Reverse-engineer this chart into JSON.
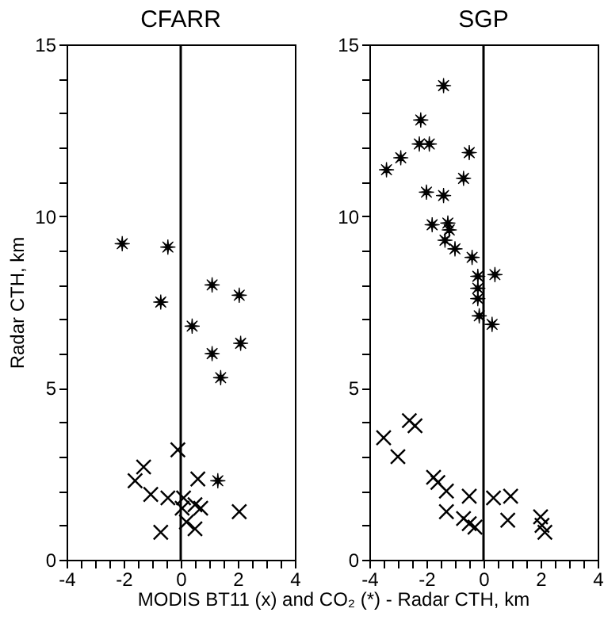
{
  "chart_data": [
    {
      "type": "scatter",
      "title": "CFARR",
      "xlabel": "MODIS BT11 (x) and CO₂ (*) - Radar CTH, km",
      "ylabel": "Radar CTH, km",
      "xlim": [
        -4,
        4
      ],
      "ylim": [
        0,
        15
      ],
      "xticks": [
        -4,
        {
          "value": -3.5,
          "label": null
        },
        {
          "value": -3,
          "label": null
        },
        {
          "value": -2.5,
          "label": null
        },
        -2,
        {
          "value": -1.5,
          "label": null
        },
        {
          "value": -1,
          "label": null
        },
        {
          "value": -0.5,
          "label": null
        },
        0,
        {
          "value": 0.5,
          "label": null
        },
        {
          "value": 1,
          "label": null
        },
        {
          "value": 1.5,
          "label": null
        },
        2,
        {
          "value": 2.5,
          "label": null
        },
        {
          "value": 3,
          "label": null
        },
        {
          "value": 3.5,
          "label": null
        },
        4
      ],
      "yticks": [
        0,
        {
          "value": 1,
          "label": null
        },
        {
          "value": 2,
          "label": null
        },
        {
          "value": 3,
          "label": null
        },
        {
          "value": 4,
          "label": null
        },
        5,
        {
          "value": 6,
          "label": null
        },
        {
          "value": 7,
          "label": null
        },
        {
          "value": 8,
          "label": null
        },
        {
          "value": 9,
          "label": null
        },
        10,
        {
          "value": 11,
          "label": null
        },
        {
          "value": 12,
          "label": null
        },
        {
          "value": 13,
          "label": null
        },
        {
          "value": 14,
          "label": null
        },
        15
      ],
      "grid": false,
      "ref_lines": [
        {
          "axis": "x",
          "value": 0,
          "color": "#000000"
        }
      ],
      "series": [
        {
          "color": "#000000",
          "marker": "cross",
          "x": [
            -0.1,
            -1.3,
            -1.6,
            -1.05,
            0.6,
            -0.45,
            0.1,
            0.5,
            0.7,
            0.05,
            2.05,
            -0.7,
            0.5,
            0.2
          ],
          "values": [
            3.2,
            2.7,
            2.3,
            1.9,
            2.35,
            1.8,
            1.8,
            1.6,
            1.5,
            1.5,
            1.4,
            0.8,
            0.9,
            1.1
          ]
        },
        {
          "color": "#000000",
          "marker": "star",
          "x": [
            -2.05,
            -0.45,
            -0.7,
            1.1,
            2.05,
            0.4,
            1.1,
            2.1,
            1.4,
            1.3
          ],
          "values": [
            9.2,
            9.1,
            7.5,
            8.0,
            7.7,
            6.8,
            6.0,
            6.3,
            5.3,
            2.3
          ]
        }
      ]
    },
    {
      "type": "scatter",
      "title": "SGP",
      "xlim": [
        -4,
        4
      ],
      "ylim": [
        0,
        15
      ],
      "xticks": [
        -4,
        {
          "value": -3.5,
          "label": null
        },
        {
          "value": -3,
          "label": null
        },
        {
          "value": -2.5,
          "label": null
        },
        -2,
        {
          "value": -1.5,
          "label": null
        },
        {
          "value": -1,
          "label": null
        },
        {
          "value": -0.5,
          "label": null
        },
        0,
        {
          "value": 0.5,
          "label": null
        },
        {
          "value": 1,
          "label": null
        },
        {
          "value": 1.5,
          "label": null
        },
        2,
        {
          "value": 2.5,
          "label": null
        },
        {
          "value": 3,
          "label": null
        },
        {
          "value": 3.5,
          "label": null
        },
        4
      ],
      "yticks": [
        0,
        {
          "value": 1,
          "label": null
        },
        {
          "value": 2,
          "label": null
        },
        {
          "value": 3,
          "label": null
        },
        {
          "value": 4,
          "label": null
        },
        5,
        {
          "value": 6,
          "label": null
        },
        {
          "value": 7,
          "label": null
        },
        {
          "value": 8,
          "label": null
        },
        {
          "value": 9,
          "label": null
        },
        10,
        {
          "value": 11,
          "label": null
        },
        {
          "value": 12,
          "label": null
        },
        {
          "value": 13,
          "label": null
        },
        {
          "value": 14,
          "label": null
        },
        15
      ],
      "grid": false,
      "ref_lines": [
        {
          "axis": "x",
          "value": 0,
          "color": "#000000"
        }
      ],
      "series": [
        {
          "color": "#000000",
          "marker": "cross",
          "x": [
            -3.5,
            -3.0,
            -2.6,
            -2.4,
            -1.75,
            -1.6,
            -1.3,
            -1.3,
            -0.5,
            -0.7,
            -0.5,
            -0.3,
            0.35,
            0.95,
            0.85,
            2.0,
            2.05,
            2.15
          ],
          "values": [
            3.55,
            3.0,
            4.05,
            3.9,
            2.4,
            2.25,
            2.0,
            1.4,
            1.85,
            1.2,
            1.05,
            0.95,
            1.8,
            1.85,
            1.15,
            1.25,
            1.0,
            0.8
          ]
        },
        {
          "color": "#000000",
          "marker": "star",
          "x": [
            -1.4,
            -2.2,
            -2.25,
            -1.9,
            -2.9,
            -3.4,
            -0.5,
            -0.7,
            -2.0,
            -1.4,
            -1.8,
            -1.25,
            -1.2,
            -1.35,
            -1.0,
            -0.4,
            -0.2,
            0.4,
            -0.2,
            -0.2,
            -0.15,
            0.3
          ],
          "values": [
            13.8,
            12.8,
            12.1,
            12.1,
            11.7,
            11.35,
            11.85,
            11.1,
            10.7,
            10.6,
            9.75,
            9.8,
            9.6,
            9.3,
            9.05,
            8.8,
            8.25,
            8.3,
            7.9,
            7.6,
            7.1,
            6.85
          ]
        }
      ]
    }
  ]
}
